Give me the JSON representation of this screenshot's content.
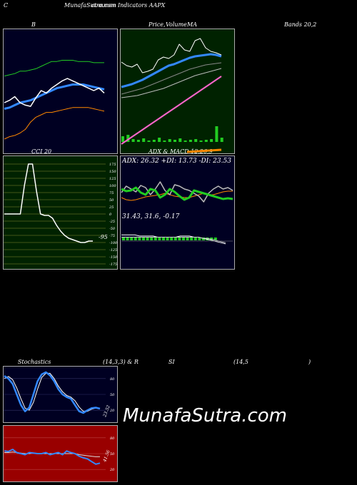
{
  "header": {
    "left_letter": "C",
    "site_title": "MunafaSutra.com",
    "indicators_title": "common Indicators AAPX",
    "b_label": "B",
    "price_title": "Price,",
    "volume_label": "Volume",
    "ma_label": "MA",
    "bands_label": "Bands 20,2"
  },
  "colors": {
    "bollinger_bg": "#000022",
    "price_bg": "#002200",
    "cci_bg": "#002200",
    "adx_bg": "#000022",
    "stoch_bg": "#000022",
    "rsi_bg": "#990000",
    "blue_line": "#3388ff",
    "green_line": "#22cc22",
    "orange_line": "#ff8800",
    "pink_line": "#ff66cc"
  },
  "cci": {
    "title": "CCI 20",
    "value_label": "-95",
    "levels": [
      "175",
      "150",
      "125",
      "100",
      "75",
      "50",
      "25",
      "0",
      "-25",
      "-50",
      "-75",
      "-100",
      "-125",
      "-150",
      "-175"
    ]
  },
  "adx": {
    "title": "ADX & MACD 12,26,9",
    "readout": "ADX: 26.32  +DI: 13.73 -DI: 23.53",
    "macd_readout": "31.43,  31.6,  -0.17"
  },
  "stoch": {
    "title_left": "Stochastics",
    "params": "(14,3,3) & R",
    "rsi_part": "SI",
    "rsi_params": "(14,5",
    "close_paren": ")",
    "levels": [
      "80",
      "50",
      "20"
    ],
    "value_label": "23.52"
  },
  "rsi": {
    "levels": [
      "80",
      "50",
      "20"
    ],
    "value_label": "41.56"
  },
  "watermark": "MunafaSutra.com",
  "chart_data": [
    {
      "type": "line",
      "name": "Bollinger",
      "series": [
        {
          "values": [
            40,
            42,
            45,
            40,
            38,
            37,
            44,
            50,
            48,
            52,
            55,
            58,
            60,
            58,
            56,
            54,
            52,
            50,
            52,
            48
          ]
        },
        {
          "values": [
            35,
            36,
            38,
            40,
            41,
            42,
            44,
            46,
            48,
            50,
            52,
            53,
            54,
            55,
            55,
            55,
            54,
            53,
            52,
            51
          ]
        },
        {
          "values": [
            62,
            63,
            64,
            66,
            66,
            67,
            68,
            70,
            72,
            74,
            74,
            75,
            75,
            75,
            74,
            74,
            74,
            73,
            73,
            73
          ]
        },
        {
          "values": [
            10,
            12,
            13,
            15,
            18,
            24,
            28,
            30,
            32,
            32,
            33,
            34,
            35,
            36,
            36,
            36,
            36,
            35,
            34,
            33
          ]
        }
      ]
    },
    {
      "type": "line",
      "name": "Price MA",
      "series": [
        {
          "values": [
            55,
            50,
            48,
            52,
            40,
            42,
            45,
            58,
            62,
            60,
            65,
            80,
            72,
            70,
            85,
            88,
            75,
            70,
            68,
            65
          ]
        },
        {
          "values": [
            20,
            22,
            24,
            27,
            30,
            34,
            38,
            42,
            46,
            50,
            52,
            55,
            58,
            61,
            63,
            64,
            65,
            66,
            65,
            63
          ]
        },
        {
          "values": [
            10,
            12,
            14,
            16,
            18,
            21,
            24,
            27,
            30,
            33,
            36,
            39,
            42,
            45,
            47,
            49,
            51,
            52,
            53,
            54
          ]
        },
        {
          "values": [
            5,
            6,
            7,
            8,
            10,
            12,
            14,
            16,
            18,
            21,
            24,
            27,
            30,
            33,
            36,
            38,
            40,
            42,
            44,
            46
          ]
        },
        {
          "values": [
            -60,
            -55,
            -50,
            -45,
            -40,
            -35,
            -30,
            -25,
            -20,
            -15,
            -10,
            -5,
            0,
            5,
            10,
            15,
            20,
            25,
            30,
            35
          ]
        }
      ],
      "volume": [
        8,
        10,
        4,
        3,
        5,
        2,
        3,
        6,
        2,
        4,
        3,
        5,
        2,
        3,
        4,
        2,
        3,
        4,
        22,
        6
      ]
    },
    {
      "type": "line",
      "name": "CCI 20",
      "ylim": [
        -175,
        175
      ],
      "values": [
        0,
        0,
        0,
        0,
        0,
        100,
        175,
        175,
        80,
        0,
        -5,
        -5,
        -15,
        -40,
        -60,
        -75,
        -85,
        -90,
        -95,
        -100,
        -100,
        -95,
        -95
      ]
    },
    {
      "type": "line",
      "name": "ADX",
      "series": [
        {
          "values": [
            30,
            27,
            28,
            32,
            25,
            22,
            30,
            28,
            18,
            22,
            30,
            26,
            20,
            15,
            18,
            28,
            26,
            24,
            22,
            20,
            18,
            16,
            17,
            16
          ]
        },
        {
          "values": [
            25,
            34,
            30,
            26,
            35,
            32,
            22,
            30,
            40,
            28,
            22,
            36,
            34,
            30,
            28,
            24,
            20,
            12,
            24,
            30,
            34,
            30,
            32,
            28
          ]
        },
        {
          "values": [
            18,
            15,
            14,
            15,
            17,
            19,
            20,
            21,
            22,
            24,
            22,
            20,
            19,
            18,
            18,
            20,
            22,
            24,
            22,
            22,
            24,
            26,
            27,
            27
          ]
        }
      ]
    },
    {
      "type": "line",
      "name": "MACD",
      "series": [
        {
          "values": [
            2,
            2,
            2,
            2,
            1,
            1,
            1,
            1,
            0,
            0,
            0,
            0,
            0,
            1,
            1,
            1,
            0,
            0,
            -1,
            -2,
            -3,
            -4,
            -5,
            -6
          ]
        },
        {
          "values": [
            0,
            0,
            0,
            0,
            0,
            0,
            0,
            0,
            0,
            0,
            0,
            0,
            0,
            0,
            0,
            0,
            0,
            0,
            -1,
            -1,
            -2,
            -3,
            -4,
            -5
          ]
        }
      ]
    },
    {
      "type": "line",
      "name": "Stochastics",
      "ylim": [
        0,
        100
      ],
      "series": [
        {
          "values": [
            85,
            80,
            70,
            50,
            30,
            18,
            25,
            50,
            75,
            88,
            92,
            86,
            75,
            60,
            50,
            45,
            42,
            30,
            18,
            15,
            20,
            24,
            25,
            23
          ]
        },
        {
          "values": [
            80,
            84,
            78,
            62,
            42,
            24,
            20,
            35,
            60,
            82,
            90,
            90,
            80,
            66,
            55,
            48,
            45,
            38,
            26,
            18,
            18,
            22,
            24,
            24
          ]
        }
      ]
    },
    {
      "type": "line",
      "name": "RSI",
      "ylim": [
        0,
        100
      ],
      "series": [
        {
          "values": [
            55,
            54,
            58,
            52,
            50,
            48,
            52,
            51,
            50,
            50,
            52,
            48,
            50,
            52,
            48,
            55,
            52,
            50,
            45,
            42,
            40,
            35,
            30,
            32
          ]
        },
        {
          "values": [
            52,
            52,
            53,
            52,
            51,
            50,
            50,
            51,
            50,
            50,
            50,
            50,
            50,
            50,
            50,
            50,
            50,
            50,
            48,
            47,
            46,
            45,
            44,
            44
          ]
        }
      ]
    }
  ]
}
